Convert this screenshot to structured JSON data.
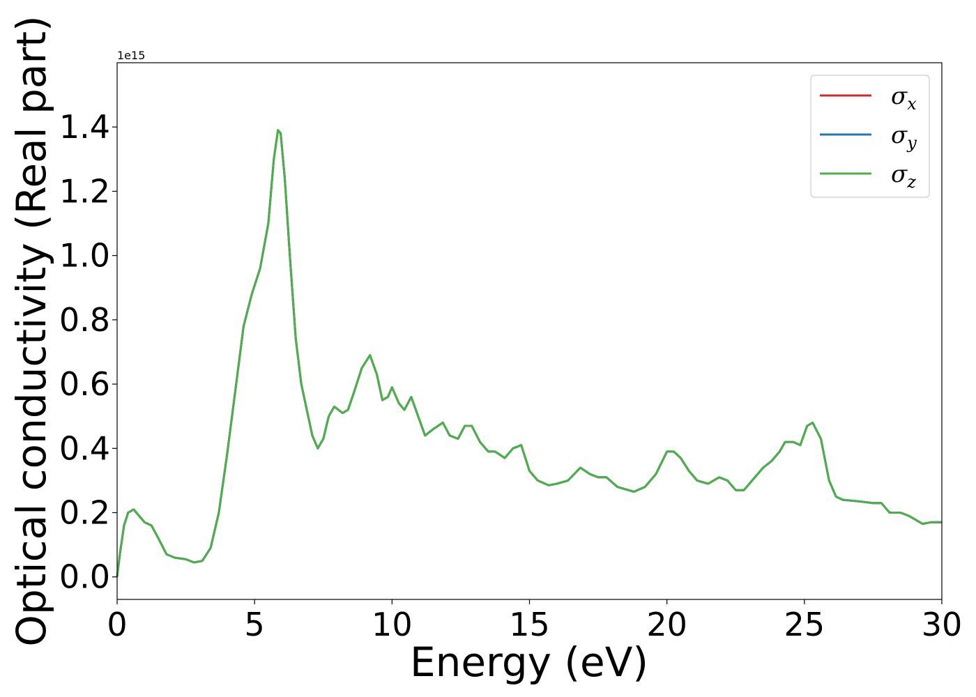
{
  "chart_data": {
    "type": "line",
    "xlabel": "Energy (eV)",
    "ylabel": "Optical conductivity (Real part)",
    "y_offset_label": "1e15",
    "y_scale": 1000000000000000.0,
    "xlim": [
      0,
      30
    ],
    "ylim": [
      -0.07,
      1.6
    ],
    "xticks": [
      0,
      5,
      10,
      15,
      20,
      25,
      30
    ],
    "xtick_labels": [
      "0",
      "5",
      "10",
      "15",
      "20",
      "25",
      "30"
    ],
    "yticks": [
      0.0,
      0.2,
      0.4,
      0.6,
      0.8,
      1.0,
      1.2,
      1.4
    ],
    "ytick_labels": [
      "0.0",
      "0.2",
      "0.4",
      "0.6",
      "0.8",
      "1.0",
      "1.2",
      "1.4"
    ],
    "grid": false,
    "legend_position": "top-right",
    "x": [
      0,
      0.1,
      0.25,
      0.4,
      0.6,
      0.8,
      1.0,
      1.25,
      1.5,
      1.8,
      2.1,
      2.5,
      2.8,
      3.1,
      3.4,
      3.7,
      4.0,
      4.3,
      4.6,
      4.9,
      5.2,
      5.5,
      5.7,
      5.85,
      5.95,
      6.1,
      6.3,
      6.5,
      6.7,
      6.9,
      7.1,
      7.3,
      7.5,
      7.7,
      7.9,
      8.2,
      8.4,
      8.6,
      8.9,
      9.2,
      9.45,
      9.65,
      9.85,
      10.0,
      10.25,
      10.45,
      10.7,
      10.95,
      11.2,
      11.5,
      11.85,
      12.1,
      12.4,
      12.65,
      12.9,
      13.2,
      13.5,
      13.75,
      14.1,
      14.4,
      14.7,
      15.0,
      15.3,
      15.7,
      16.0,
      16.4,
      16.85,
      17.2,
      17.5,
      17.8,
      18.2,
      18.8,
      19.2,
      19.6,
      20.0,
      20.25,
      20.5,
      20.8,
      21.1,
      21.5,
      21.9,
      22.2,
      22.5,
      22.8,
      23.1,
      23.5,
      23.8,
      24.1,
      24.3,
      24.6,
      24.85,
      25.1,
      25.3,
      25.6,
      25.9,
      26.15,
      26.4,
      27.0,
      27.5,
      27.8,
      28.1,
      28.5,
      28.8,
      29.0,
      29.3,
      29.6,
      30.0
    ],
    "series": [
      {
        "name": "σx",
        "color": "#d62728",
        "values": [
          0.0,
          0.07,
          0.16,
          0.2,
          0.21,
          0.19,
          0.17,
          0.16,
          0.12,
          0.07,
          0.06,
          0.055,
          0.045,
          0.05,
          0.09,
          0.2,
          0.38,
          0.58,
          0.78,
          0.88,
          0.96,
          1.1,
          1.3,
          1.39,
          1.38,
          1.24,
          0.98,
          0.74,
          0.6,
          0.52,
          0.44,
          0.4,
          0.43,
          0.5,
          0.53,
          0.51,
          0.52,
          0.57,
          0.65,
          0.69,
          0.63,
          0.55,
          0.56,
          0.59,
          0.54,
          0.52,
          0.56,
          0.5,
          0.44,
          0.46,
          0.48,
          0.44,
          0.43,
          0.47,
          0.47,
          0.42,
          0.39,
          0.39,
          0.37,
          0.4,
          0.41,
          0.33,
          0.3,
          0.285,
          0.29,
          0.3,
          0.34,
          0.32,
          0.31,
          0.31,
          0.28,
          0.265,
          0.28,
          0.32,
          0.39,
          0.39,
          0.37,
          0.33,
          0.3,
          0.29,
          0.31,
          0.3,
          0.27,
          0.27,
          0.3,
          0.34,
          0.36,
          0.39,
          0.42,
          0.42,
          0.41,
          0.47,
          0.48,
          0.43,
          0.3,
          0.25,
          0.24,
          0.235,
          0.23,
          0.23,
          0.2,
          0.2,
          0.19,
          0.18,
          0.165,
          0.17,
          0.17
        ]
      },
      {
        "name": "σy",
        "color": "#1f77b4",
        "values": [
          0.0,
          0.07,
          0.16,
          0.2,
          0.21,
          0.19,
          0.17,
          0.16,
          0.12,
          0.07,
          0.06,
          0.055,
          0.045,
          0.05,
          0.09,
          0.2,
          0.38,
          0.58,
          0.78,
          0.88,
          0.96,
          1.1,
          1.3,
          1.39,
          1.38,
          1.24,
          0.98,
          0.74,
          0.6,
          0.52,
          0.44,
          0.4,
          0.43,
          0.5,
          0.53,
          0.51,
          0.52,
          0.57,
          0.65,
          0.69,
          0.63,
          0.55,
          0.56,
          0.59,
          0.54,
          0.52,
          0.56,
          0.5,
          0.44,
          0.46,
          0.48,
          0.44,
          0.43,
          0.47,
          0.47,
          0.42,
          0.39,
          0.39,
          0.37,
          0.4,
          0.41,
          0.33,
          0.3,
          0.285,
          0.29,
          0.3,
          0.34,
          0.32,
          0.31,
          0.31,
          0.28,
          0.265,
          0.28,
          0.32,
          0.39,
          0.39,
          0.37,
          0.33,
          0.3,
          0.29,
          0.31,
          0.3,
          0.27,
          0.27,
          0.3,
          0.34,
          0.36,
          0.39,
          0.42,
          0.42,
          0.41,
          0.47,
          0.48,
          0.43,
          0.3,
          0.25,
          0.24,
          0.235,
          0.23,
          0.23,
          0.2,
          0.2,
          0.19,
          0.18,
          0.165,
          0.17,
          0.17
        ]
      },
      {
        "name": "σz",
        "color": "#4daf4a",
        "values": [
          0.0,
          0.07,
          0.16,
          0.2,
          0.21,
          0.19,
          0.17,
          0.16,
          0.12,
          0.07,
          0.06,
          0.055,
          0.045,
          0.05,
          0.09,
          0.2,
          0.38,
          0.58,
          0.78,
          0.88,
          0.96,
          1.1,
          1.3,
          1.39,
          1.38,
          1.24,
          0.98,
          0.74,
          0.6,
          0.52,
          0.44,
          0.4,
          0.43,
          0.5,
          0.53,
          0.51,
          0.52,
          0.57,
          0.65,
          0.69,
          0.63,
          0.55,
          0.56,
          0.59,
          0.54,
          0.52,
          0.56,
          0.5,
          0.44,
          0.46,
          0.48,
          0.44,
          0.43,
          0.47,
          0.47,
          0.42,
          0.39,
          0.39,
          0.37,
          0.4,
          0.41,
          0.33,
          0.3,
          0.285,
          0.29,
          0.3,
          0.34,
          0.32,
          0.31,
          0.31,
          0.28,
          0.265,
          0.28,
          0.32,
          0.39,
          0.39,
          0.37,
          0.33,
          0.3,
          0.29,
          0.31,
          0.3,
          0.27,
          0.27,
          0.3,
          0.34,
          0.36,
          0.39,
          0.42,
          0.42,
          0.41,
          0.47,
          0.48,
          0.43,
          0.3,
          0.25,
          0.24,
          0.235,
          0.23,
          0.23,
          0.2,
          0.2,
          0.19,
          0.18,
          0.165,
          0.17,
          0.17
        ]
      }
    ],
    "legend": [
      {
        "symbol": "σ",
        "sub": "x",
        "color": "#d62728"
      },
      {
        "symbol": "σ",
        "sub": "y",
        "color": "#1f77b4"
      },
      {
        "symbol": "σ",
        "sub": "z",
        "color": "#4daf4a"
      }
    ]
  }
}
